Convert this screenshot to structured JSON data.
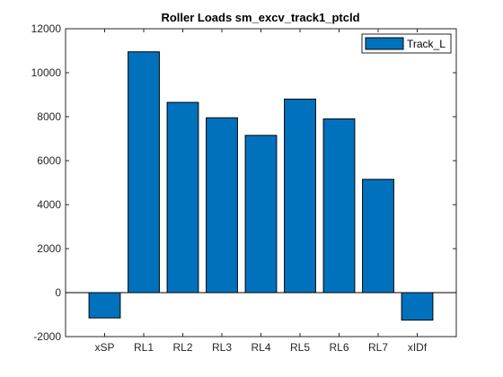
{
  "chart_data": {
    "type": "bar",
    "title": "Roller Loads sm_excv_track1_ptcld",
    "xlabel": "",
    "ylabel": "",
    "categories": [
      "xSP",
      "RL1",
      "RL2",
      "RL3",
      "RL4",
      "RL5",
      "RL6",
      "RL7",
      "xIDf"
    ],
    "series": [
      {
        "name": "Track_L",
        "values": [
          -1150,
          10950,
          8650,
          7950,
          7150,
          8800,
          7900,
          5150,
          -1250
        ]
      }
    ],
    "ylim": [
      -2000,
      12000
    ],
    "yticks": [
      -2000,
      0,
      2000,
      4000,
      6000,
      8000,
      10000,
      12000
    ],
    "ytick_labels": [
      "-2000",
      "0",
      "2000",
      "4000",
      "6000",
      "8000",
      "10000",
      "12000"
    ],
    "grid": false,
    "legend_position": "top-right",
    "colors": {
      "bar": "#0072BD",
      "bar_edge": "#000000",
      "axes": "#262626"
    }
  }
}
